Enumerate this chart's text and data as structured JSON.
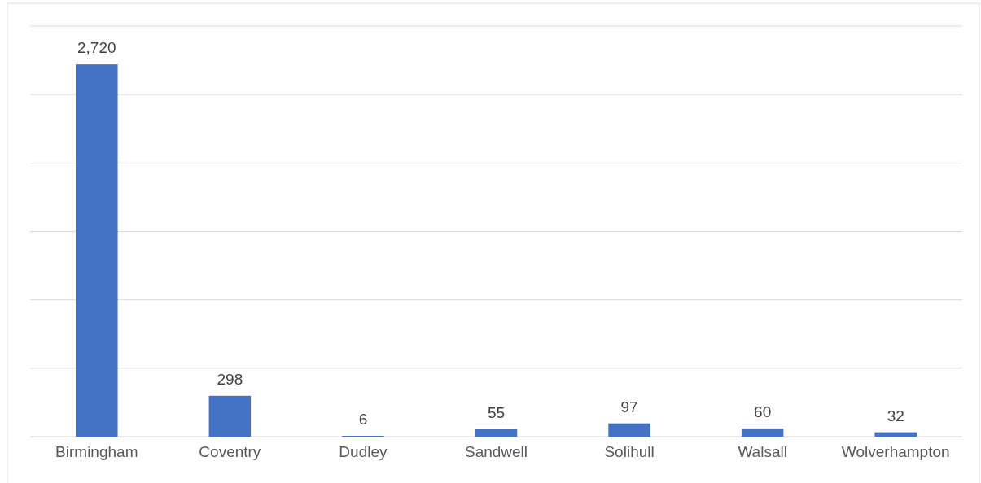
{
  "chart_data": {
    "type": "bar",
    "categories": [
      "Birmingham",
      "Coventry",
      "Dudley",
      "Sandwell",
      "Solihull",
      "Walsall",
      "Wolverhampton"
    ],
    "values": [
      2720,
      298,
      6,
      55,
      97,
      60,
      32
    ],
    "color": "#4472c4",
    "value_labels": [
      "2,720",
      "298",
      "6",
      "55",
      "97",
      "60",
      "32"
    ],
    "ylim": [
      0,
      3000
    ],
    "yticks": [
      {
        "value": 0,
        "label": null
      },
      {
        "value": 500,
        "label": null
      },
      {
        "value": 1000,
        "label": null
      },
      {
        "value": 1500,
        "label": null
      },
      {
        "value": 2000,
        "label": null
      },
      {
        "value": 2500,
        "label": null
      },
      {
        "value": 3000,
        "label": null
      }
    ],
    "grid": "y",
    "tick_labels": "x"
  }
}
